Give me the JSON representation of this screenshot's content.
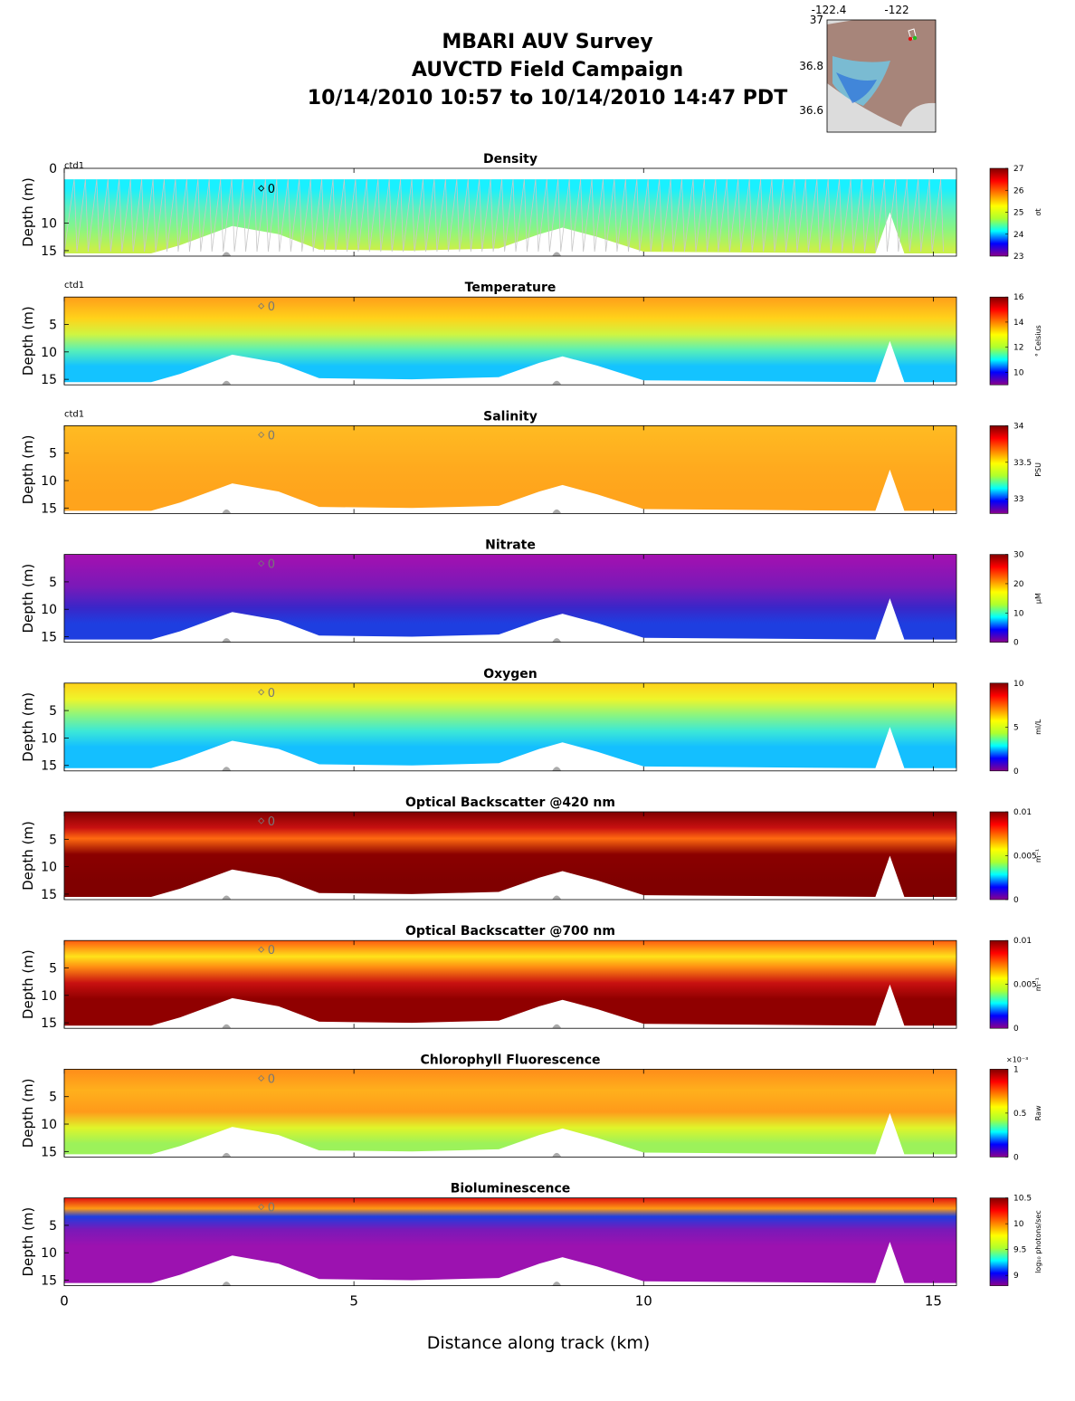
{
  "header": {
    "title": "MBARI AUV Survey",
    "subtitle": "AUVCTD Field Campaign",
    "time_range": "10/14/2010 10:57  to 10/14/2010 14:47 PDT"
  },
  "inset_map": {
    "lon_ticks": [
      "-122.4",
      "-122"
    ],
    "lat_ticks": [
      "37",
      "36.8",
      "36.6"
    ],
    "colors": {
      "land": "#a7857a",
      "ocean": "#dcdcdc"
    }
  },
  "chart_data": {
    "type": "heatmap",
    "xlabel": "Distance along track (km)",
    "x_ticks": [
      "0",
      "5",
      "10",
      "15"
    ],
    "xlim": [
      0,
      15.4
    ],
    "ylabel": "Depth (m)",
    "ylim": [
      16,
      0
    ],
    "colormap": [
      "#8b008b",
      "#0000ff",
      "#00ffff",
      "#adff2f",
      "#ffff00",
      "#ff7f00",
      "#ff0000",
      "#800000"
    ],
    "seafloor_profile": {
      "x_km": [
        0,
        1.5,
        2.0,
        2.9,
        3.7,
        4.4,
        6.0,
        7.5,
        8.2,
        8.6,
        9.2,
        10.0,
        14.0,
        14.25,
        14.5,
        15.4
      ],
      "depth_m": [
        15.5,
        15.5,
        14.0,
        10.5,
        12.0,
        14.8,
        15.0,
        14.6,
        12.0,
        10.8,
        12.5,
        15.2,
        15.5,
        8.0,
        15.5,
        15.5
      ]
    },
    "marker": {
      "label": "0",
      "x_km": 3.4
    },
    "panels": [
      {
        "title": "Density",
        "ctd_label": "ctd1",
        "unit": "σt",
        "y_ticks": [
          "0",
          "10",
          "15"
        ],
        "cbar_ticks": [
          "27",
          "26",
          "25",
          "24",
          "23"
        ],
        "range": [
          23,
          27
        ],
        "data_top_m": 2.0,
        "bands": [
          {
            "depth_m": 2,
            "color": "#19f0ff"
          },
          {
            "depth_m": 6,
            "color": "#5af0c3"
          },
          {
            "depth_m": 11,
            "color": "#8cf57f"
          },
          {
            "depth_m": 15,
            "color": "#c8f04a"
          }
        ]
      },
      {
        "title": "Temperature",
        "ctd_label": "ctd1",
        "unit": "° Celsius",
        "y_ticks": [
          "5",
          "10",
          "15"
        ],
        "cbar_ticks": [
          "16",
          "14",
          "12",
          "10"
        ],
        "range": [
          9,
          16
        ],
        "data_top_m": 0,
        "bands": [
          {
            "depth_m": 0,
            "color": "#ff9e1a"
          },
          {
            "depth_m": 4,
            "color": "#ffd21a"
          },
          {
            "depth_m": 7,
            "color": "#d0f541"
          },
          {
            "depth_m": 10,
            "color": "#58f0b8"
          },
          {
            "depth_m": 13,
            "color": "#14c3ff"
          }
        ]
      },
      {
        "title": "Salinity",
        "ctd_label": "ctd1",
        "unit": "PSU",
        "y_ticks": [
          "5",
          "10",
          "15"
        ],
        "cbar_ticks": [
          "34",
          "33.5",
          "33"
        ],
        "range": [
          32.8,
          34
        ],
        "data_top_m": 0,
        "bands": [
          {
            "depth_m": 0,
            "color": "#ffbb22"
          },
          {
            "depth_m": 8,
            "color": "#ffaa1e"
          },
          {
            "depth_m": 13,
            "color": "#ffa41c"
          }
        ]
      },
      {
        "title": "Nitrate",
        "ctd_label": "",
        "unit": "μM",
        "y_ticks": [
          "5",
          "10",
          "15"
        ],
        "cbar_ticks": [
          "30",
          "20",
          "10",
          "0"
        ],
        "range": [
          0,
          30
        ],
        "data_top_m": 0,
        "bands": [
          {
            "depth_m": 0,
            "color": "#a510b0"
          },
          {
            "depth_m": 6,
            "color": "#7a19b8"
          },
          {
            "depth_m": 10,
            "color": "#3a26c8"
          },
          {
            "depth_m": 13,
            "color": "#1e3ee0"
          }
        ]
      },
      {
        "title": "Oxygen",
        "ctd_label": "",
        "unit": "ml/L",
        "y_ticks": [
          "5",
          "10",
          "15"
        ],
        "cbar_ticks": [
          "10",
          "5",
          "0"
        ],
        "range": [
          0,
          10
        ],
        "data_top_m": 0,
        "bands": [
          {
            "depth_m": 0,
            "color": "#ffd21a"
          },
          {
            "depth_m": 3,
            "color": "#eef52a"
          },
          {
            "depth_m": 6,
            "color": "#8cf57f"
          },
          {
            "depth_m": 9,
            "color": "#3ce8d7"
          },
          {
            "depth_m": 12,
            "color": "#14bfff"
          }
        ]
      },
      {
        "title": "Optical Backscatter @420 nm",
        "ctd_label": "",
        "unit": "m⁻¹",
        "y_ticks": [
          "5",
          "10",
          "15"
        ],
        "cbar_ticks": [
          "0.01",
          "0.005",
          "0"
        ],
        "range": [
          0,
          0.01
        ],
        "data_top_m": 0,
        "bands": [
          {
            "depth_m": 0,
            "color": "#800000"
          },
          {
            "depth_m": 3,
            "color": "#c81010"
          },
          {
            "depth_m": 5,
            "color": "#ff6a10"
          },
          {
            "depth_m": 8,
            "color": "#8b0000"
          },
          {
            "depth_m": 13,
            "color": "#800000"
          }
        ]
      },
      {
        "title": "Optical Backscatter @700 nm",
        "ctd_label": "",
        "unit": "m⁻¹",
        "y_ticks": [
          "5",
          "10",
          "15"
        ],
        "cbar_ticks": [
          "0.01",
          "0.005",
          "0"
        ],
        "range": [
          0,
          0.01
        ],
        "data_top_m": 0,
        "bands": [
          {
            "depth_m": 0,
            "color": "#ff5a10"
          },
          {
            "depth_m": 3,
            "color": "#ffe21a"
          },
          {
            "depth_m": 5,
            "color": "#ff8c12"
          },
          {
            "depth_m": 8,
            "color": "#c81010"
          },
          {
            "depth_m": 11,
            "color": "#900000"
          }
        ]
      },
      {
        "title": "Chlorophyll Fluorescence",
        "ctd_label": "",
        "unit": "Raw",
        "y_ticks": [
          "5",
          "10",
          "15"
        ],
        "cbar_ticks": [
          "1",
          "0.5",
          "0"
        ],
        "cbar_multiplier": "×10⁻³",
        "range": [
          0,
          0.001
        ],
        "data_top_m": 0,
        "bands": [
          {
            "depth_m": 0,
            "color": "#ff8c1a"
          },
          {
            "depth_m": 4,
            "color": "#ffb01c"
          },
          {
            "depth_m": 8,
            "color": "#ff9a1a"
          },
          {
            "depth_m": 11,
            "color": "#dff52a"
          },
          {
            "depth_m": 14,
            "color": "#9cf25a"
          }
        ]
      },
      {
        "title": "Bioluminescence",
        "ctd_label": "",
        "unit": "log₁₀ photons/sec",
        "y_ticks": [
          "5",
          "10",
          "15"
        ],
        "cbar_ticks": [
          "10.5",
          "10",
          "9.5",
          "9"
        ],
        "range": [
          8.8,
          10.5
        ],
        "data_top_m": 0,
        "bands": [
          {
            "depth_m": 0,
            "color": "#e01010"
          },
          {
            "depth_m": 2,
            "color": "#ff9a12"
          },
          {
            "depth_m": 3.5,
            "color": "#1e3ee0"
          },
          {
            "depth_m": 6,
            "color": "#7a19b8"
          },
          {
            "depth_m": 9,
            "color": "#9c12b0"
          }
        ]
      }
    ]
  }
}
